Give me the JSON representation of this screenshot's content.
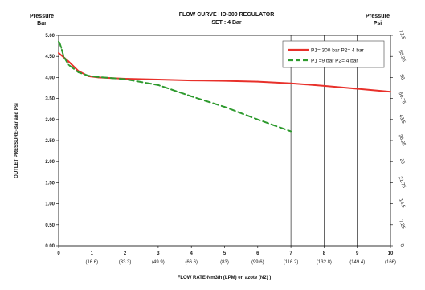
{
  "chart_data": {
    "type": "line",
    "title": "FLOW CURVE HD-300 REGULATOR",
    "subtitle": "SET : 4 Bar",
    "left_corner_label": [
      "Pressure",
      "Bar"
    ],
    "right_corner_label": [
      "Pressure",
      "Psi"
    ],
    "ylabel": "OUTLET PRESSURE-Bar and Psi",
    "xlabel": "FLOW RATE-Nm3/h (LPM)  en azote (N2) )",
    "xlim": [
      0,
      10
    ],
    "ylim": [
      0,
      5
    ],
    "x_ticks": [
      "0",
      "1",
      "2",
      "3",
      "4",
      "5",
      "6",
      "7",
      "8",
      "9",
      "10"
    ],
    "x_ticks_lpm": [
      "",
      "(16.6)",
      "(33.3)",
      "(49.9)",
      "(66.6)",
      "(83)",
      "(99.6)",
      "(116.2)",
      "(132.8)",
      "(149.4)",
      "(166)"
    ],
    "y_ticks": [
      "0.00",
      "0.50",
      "1.00",
      "1.50",
      "2.00",
      "2.50",
      "3.00",
      "3.50",
      "4.00",
      "4.50",
      "5.00"
    ],
    "y_right_ticks": [
      "0",
      "7.25",
      "14.5",
      "21.75",
      "29",
      "36.25",
      "43.5",
      "50.75",
      "58",
      "65.25",
      "72.5"
    ],
    "grid": "vertical lines at x = 7, 8, 9",
    "legend_position": "top-right",
    "series": [
      {
        "name": "P1= 300 bar  P2= 4 bar",
        "color": "#e8302a",
        "dash": "solid",
        "x": [
          0,
          0.3,
          0.6,
          0.9,
          1.2,
          2,
          3,
          4,
          5,
          6,
          7,
          8,
          9,
          10
        ],
        "y": [
          4.58,
          4.38,
          4.15,
          4.03,
          4.0,
          3.97,
          3.95,
          3.93,
          3.92,
          3.9,
          3.86,
          3.8,
          3.73,
          3.66
        ]
      },
      {
        "name": "P1 =9 bar  P2= 4 bar",
        "color": "#2e9a2e",
        "dash": "dashed",
        "x": [
          0,
          0.03,
          0.08,
          0.15,
          0.3,
          0.6,
          0.9,
          1.2,
          2,
          3,
          4,
          5,
          6,
          7
        ],
        "y": [
          4.85,
          4.82,
          4.7,
          4.5,
          4.3,
          4.12,
          4.04,
          4.01,
          3.96,
          3.82,
          3.55,
          3.3,
          3.0,
          2.72
        ]
      }
    ]
  }
}
